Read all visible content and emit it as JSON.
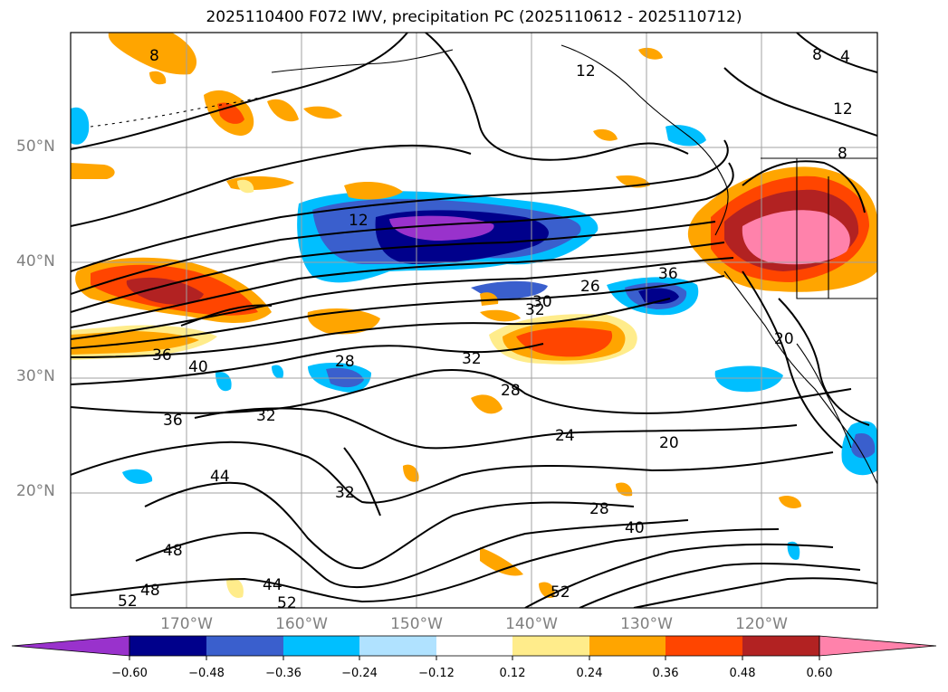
{
  "title": "2025110400 F072 IWV, precipitation PC (2025110612 - 2025110712)",
  "lat_labels": [
    "50°N",
    "40°N",
    "30°N",
    "20°N"
  ],
  "lon_labels": [
    "170°W",
    "160°W",
    "150°W",
    "140°W",
    "130°W",
    "120°W"
  ],
  "contour_labels": [
    "8",
    "4",
    "12",
    "12",
    "8",
    "12",
    "8",
    "36",
    "26",
    "30",
    "32",
    "40",
    "36",
    "28",
    "32",
    "32",
    "28",
    "24",
    "20",
    "36",
    "32",
    "44",
    "28",
    "40",
    "48",
    "44",
    "52",
    "48",
    "52",
    "52",
    "20"
  ],
  "colorbar": {
    "ticks": [
      "−0.60",
      "−0.48",
      "−0.36",
      "−0.24",
      "−0.12",
      "0.12",
      "0.24",
      "0.36",
      "0.48",
      "0.60"
    ],
    "colors": [
      "#9932cc",
      "#00008b",
      "#3a5fcd",
      "#00bfff",
      "#b0e2ff",
      "#ffffff",
      "#ffec8b",
      "#ffa500",
      "#ff4500",
      "#b22222",
      "#ff82ab"
    ]
  }
}
